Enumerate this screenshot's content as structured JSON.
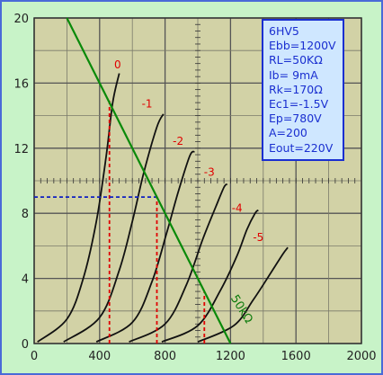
{
  "chart_data": {
    "type": "line",
    "title": "",
    "xlabel": "",
    "ylabel": "",
    "xlim": [
      0,
      2000
    ],
    "ylim": [
      0,
      20
    ],
    "x_ticks": [
      "0",
      "400",
      "800",
      "1200",
      "1600",
      "2000"
    ],
    "y_ticks": [
      "0",
      "4",
      "8",
      "12",
      "16",
      "20"
    ],
    "grid": true,
    "series": [
      {
        "name": "0",
        "points": [
          [
            20,
            0.1
          ],
          [
            200,
            1.5
          ],
          [
            300,
            4
          ],
          [
            380,
            7.5
          ],
          [
            440,
            11.5
          ],
          [
            480,
            14.8
          ],
          [
            520,
            16.6
          ]
        ]
      },
      {
        "name": "-1",
        "points": [
          [
            180,
            0.1
          ],
          [
            400,
            1.6
          ],
          [
            520,
            4.5
          ],
          [
            600,
            7.5
          ],
          [
            670,
            10.5
          ],
          [
            750,
            13.3
          ],
          [
            790,
            14.1
          ]
        ]
      },
      {
        "name": "-2",
        "points": [
          [
            380,
            0.1
          ],
          [
            600,
            1.3
          ],
          [
            720,
            3.8
          ],
          [
            810,
            6.8
          ],
          [
            880,
            9.3
          ],
          [
            950,
            11.5
          ],
          [
            980,
            11.8
          ]
        ]
      },
      {
        "name": "-3",
        "points": [
          [
            580,
            0.1
          ],
          [
            800,
            1.2
          ],
          [
            930,
            3.6
          ],
          [
            1030,
            6.4
          ],
          [
            1110,
            8.4
          ],
          [
            1160,
            9.6
          ],
          [
            1180,
            9.8
          ]
        ]
      },
      {
        "name": "-4",
        "points": [
          [
            780,
            0.1
          ],
          [
            1000,
            1.1
          ],
          [
            1140,
            3.3
          ],
          [
            1240,
            5.4
          ],
          [
            1300,
            7.0
          ],
          [
            1350,
            8.0
          ],
          [
            1370,
            8.2
          ]
        ]
      },
      {
        "name": "-5",
        "points": [
          [
            1000,
            0.1
          ],
          [
            1220,
            1.1
          ],
          [
            1340,
            2.7
          ],
          [
            1450,
            4.4
          ],
          [
            1520,
            5.5
          ],
          [
            1550,
            5.9
          ]
        ]
      }
    ],
    "load_line": {
      "name": "50kΩ",
      "x": [
        200,
        1200
      ],
      "y": [
        20,
        0
      ]
    },
    "markers": {
      "vertical": [
        {
          "x": 460,
          "y": 15
        },
        {
          "x": 750,
          "y": 9
        },
        {
          "x": 1040,
          "y": 3.2
        }
      ],
      "horizontal": {
        "y": 9,
        "x": 750
      }
    },
    "curve_labels": [
      {
        "text": "0",
        "x": 510,
        "y": 16.9
      },
      {
        "text": "-1",
        "x": 690,
        "y": 14.5
      },
      {
        "text": "-2",
        "x": 880,
        "y": 12.2
      },
      {
        "text": "-3",
        "x": 1070,
        "y": 10.3
      },
      {
        "text": "-4",
        "x": 1240,
        "y": 8.1
      },
      {
        "text": "-5",
        "x": 1370,
        "y": 6.3
      }
    ],
    "load_label": {
      "text": "50kΩ",
      "x": 1200,
      "y": 2.8
    }
  },
  "info_box": {
    "lines": [
      "6HV5",
      "Ebb=1200V",
      "RL=50KΩ",
      "Ib=  9mA",
      "Rk=170Ω",
      "Ec1=-1.5V",
      "Ep=780V",
      "A=200",
      "Eout=220V"
    ]
  }
}
